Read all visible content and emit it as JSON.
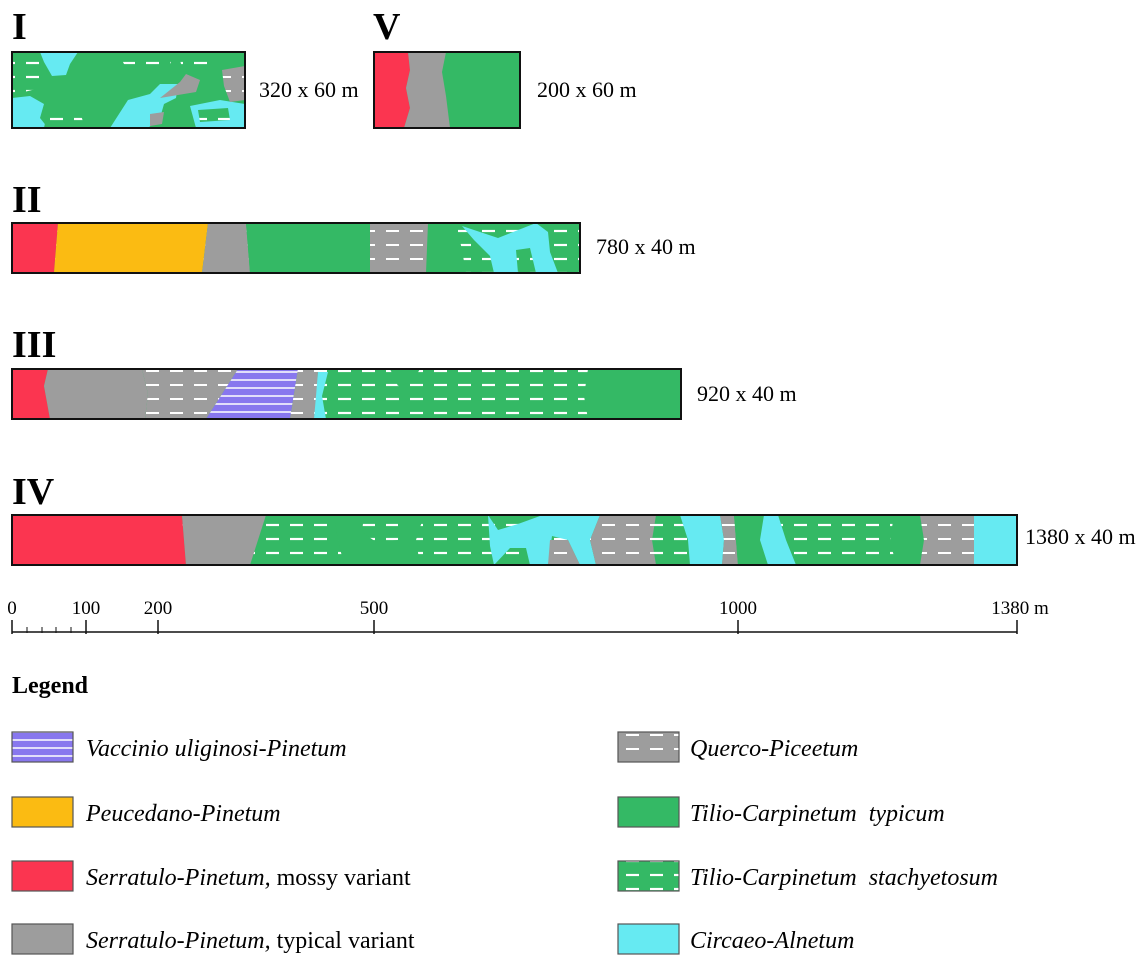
{
  "transects": [
    {
      "id": "I",
      "dimensions": "320 x 60 m"
    },
    {
      "id": "V",
      "dimensions": "200 x 60 m"
    },
    {
      "id": "II",
      "dimensions": "780 x 40 m"
    },
    {
      "id": "III",
      "dimensions": "920 x 40 m"
    },
    {
      "id": "IV",
      "dimensions": "1380 x 40 m"
    }
  ],
  "scale": {
    "ticks": [
      "0",
      "100",
      "200",
      "500",
      "1000"
    ],
    "end_label": "1380 m"
  },
  "legend": {
    "title": "Legend",
    "items": [
      {
        "key": "vaccinio",
        "italic": "Vaccinio uliginosi-Pinetum",
        "plain": "",
        "color": "#8877ee",
        "pattern": "lines-white"
      },
      {
        "key": "peucedano",
        "italic": "Peucedano-Pinetum",
        "plain": "",
        "color": "#fbbb12",
        "pattern": "none"
      },
      {
        "key": "serr-mossy",
        "italic": "Serratulo-Pinetum,",
        "plain": " mossy variant",
        "color": "#fb3550",
        "pattern": "none"
      },
      {
        "key": "serr-typ",
        "italic": "Serratulo-Pinetum,",
        "plain": " typical variant",
        "color": "#9d9d9d",
        "pattern": "none"
      },
      {
        "key": "querco",
        "italic": "Querco-Piceetum",
        "plain": "",
        "color": "#9d9d9d",
        "pattern": "dashes-white"
      },
      {
        "key": "tilio-typ",
        "italic": "Tilio-Carpinetum  typicum",
        "plain": "",
        "color": "#34b965",
        "pattern": "none"
      },
      {
        "key": "tilio-stach",
        "italic": "Tilio-Carpinetum  stachyetosum",
        "plain": "",
        "color": "#34b965",
        "pattern": "dashes-white"
      },
      {
        "key": "circaeo",
        "italic": "Circaeo-Alnetum",
        "plain": "",
        "color": "#66eaf2",
        "pattern": "none"
      }
    ]
  }
}
